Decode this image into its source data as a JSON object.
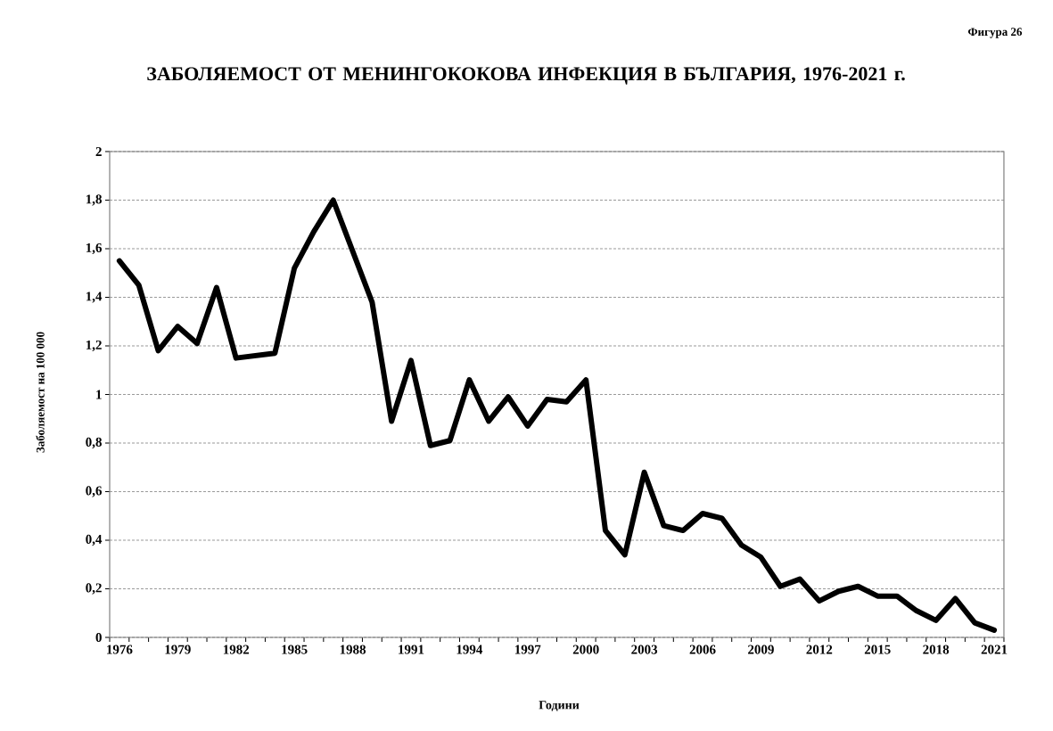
{
  "chart_data": {
    "type": "line",
    "title": "ЗАБОЛЯЕМОСТ ОТ МЕНИНГОКОКОВА ИНФЕКЦИЯ В БЪЛГАРИЯ, 1976-2021 г.",
    "annotations": [
      "Фигура 26"
    ],
    "xlabel": "Години",
    "ylabel": "Заболяемост на 100 000",
    "categories": [
      "1976",
      null,
      null,
      "1979",
      null,
      null,
      "1982",
      null,
      null,
      "1985",
      null,
      null,
      "1988",
      null,
      null,
      "1991",
      null,
      null,
      "1994",
      null,
      null,
      "1997",
      null,
      null,
      "2000",
      null,
      null,
      "2003",
      null,
      null,
      "2006",
      null,
      null,
      "2009",
      null,
      null,
      "2012",
      null,
      null,
      "2015",
      null,
      null,
      "2018",
      null,
      null,
      "2021"
    ],
    "series": [
      {
        "color": "#000000",
        "values": [
          1.55,
          1.45,
          1.18,
          1.28,
          1.21,
          1.44,
          1.15,
          1.16,
          1.17,
          1.52,
          1.67,
          1.8,
          1.59,
          1.38,
          0.89,
          1.14,
          0.79,
          0.81,
          1.06,
          0.89,
          0.99,
          0.87,
          0.98,
          0.97,
          1.06,
          0.44,
          0.34,
          0.68,
          0.46,
          0.44,
          0.51,
          0.49,
          0.38,
          0.33,
          0.21,
          0.24,
          0.15,
          0.19,
          0.21,
          0.17,
          0.17,
          0.11,
          0.07,
          0.16,
          0.06,
          0.03
        ]
      }
    ],
    "ylim": [
      0,
      2
    ],
    "yticks": [
      0,
      {
        "value": 0.2,
        "label": "0,2"
      },
      {
        "value": 0.4,
        "label": "0,4"
      },
      {
        "value": 0.6,
        "label": "0,6"
      },
      {
        "value": 0.8,
        "label": "0,8"
      },
      1,
      {
        "value": 1.2,
        "label": "1,2"
      },
      {
        "value": 1.4,
        "label": "1,4"
      },
      {
        "value": 1.6,
        "label": "1,6"
      },
      {
        "value": 1.8,
        "label": "1,8"
      },
      2
    ],
    "grid": "y",
    "legend": false,
    "marker": "none",
    "line_style": "solid"
  }
}
